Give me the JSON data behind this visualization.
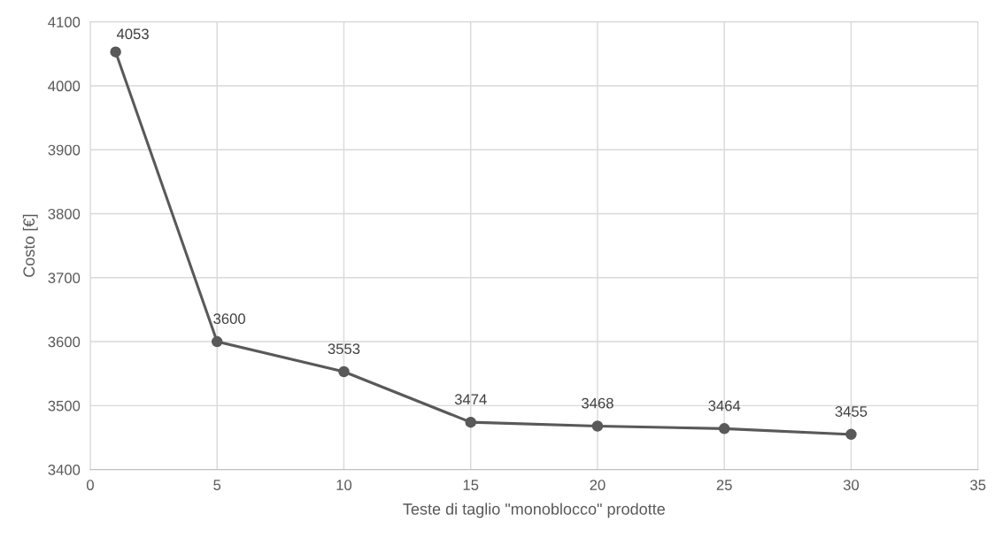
{
  "chart_data": {
    "type": "line",
    "xlabel": "Teste di taglio \"monoblocco\" prodotte",
    "ylabel": "Costo [€]",
    "x": [
      1,
      5,
      10,
      15,
      20,
      25,
      30
    ],
    "series": [
      {
        "color": "#595959",
        "values": [
          4053,
          3600,
          3553,
          3474,
          3468,
          3464,
          3455
        ]
      }
    ],
    "xlim": [
      0,
      35
    ],
    "xticks": [
      0,
      5,
      10,
      15,
      20,
      25,
      30,
      35
    ],
    "ylim": [
      3400,
      4100
    ],
    "yticks": [
      3400,
      3500,
      3600,
      3700,
      3800,
      3900,
      4000,
      4100
    ],
    "grid": true,
    "marker": "circle",
    "line_style": "solid",
    "data_labels": true,
    "legend": false
  }
}
